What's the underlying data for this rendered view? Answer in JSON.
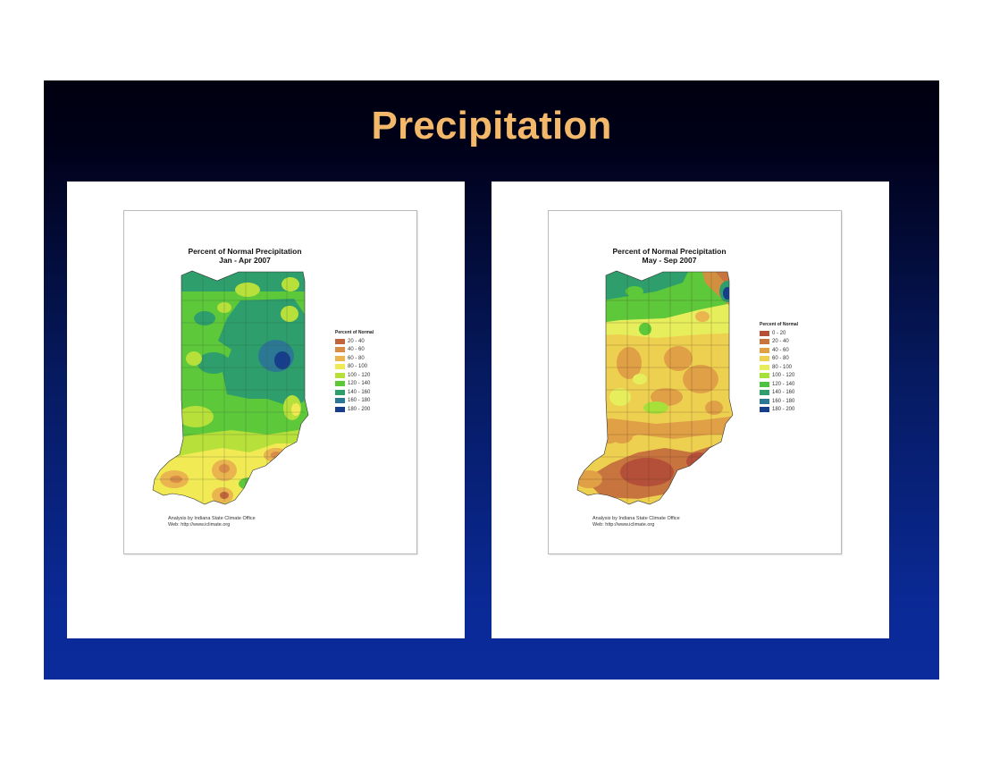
{
  "slide": {
    "title": "Precipitation"
  },
  "maps": [
    {
      "title": "Percent of Normal Precipitation",
      "period": "Jan - Apr 2007",
      "legend_title": "Percent of Normal",
      "legend": [
        {
          "label": "20 - 40",
          "color": "#c0643c"
        },
        {
          "label": "40 - 60",
          "color": "#d98c48"
        },
        {
          "label": "60 - 80",
          "color": "#eab44e"
        },
        {
          "label": "80 - 100",
          "color": "#f2ea54"
        },
        {
          "label": "100 - 120",
          "color": "#b8e03a"
        },
        {
          "label": "120 - 140",
          "color": "#5cc83a"
        },
        {
          "label": "140 - 160",
          "color": "#2e9e6c"
        },
        {
          "label": "160 - 180",
          "color": "#2c7894"
        },
        {
          "label": "180 - 200",
          "color": "#163e8a"
        }
      ],
      "credit_line1": "Analysis by Indiana State Climate Office",
      "credit_line2": "Web: http://www.iclimate.org"
    },
    {
      "title": "Percent of Normal Precipitation",
      "period": "May - Sep 2007",
      "legend_title": "Percent of Normal",
      "legend": [
        {
          "label": "0 - 20",
          "color": "#b4503a"
        },
        {
          "label": "20 - 40",
          "color": "#c8743e"
        },
        {
          "label": "40 - 60",
          "color": "#e0a046"
        },
        {
          "label": "60 - 80",
          "color": "#eed050"
        },
        {
          "label": "80 - 100",
          "color": "#e6ee5c"
        },
        {
          "label": "100 - 120",
          "color": "#a8e03a"
        },
        {
          "label": "120 - 140",
          "color": "#4cc240"
        },
        {
          "label": "140 - 160",
          "color": "#2e9e6c"
        },
        {
          "label": "160 - 180",
          "color": "#2c7894"
        },
        {
          "label": "180 - 200",
          "color": "#163e8a"
        }
      ],
      "credit_line1": "Analysis by Indiana State Climate Office",
      "credit_line2": "Web: http://www.iclimate.org"
    }
  ]
}
